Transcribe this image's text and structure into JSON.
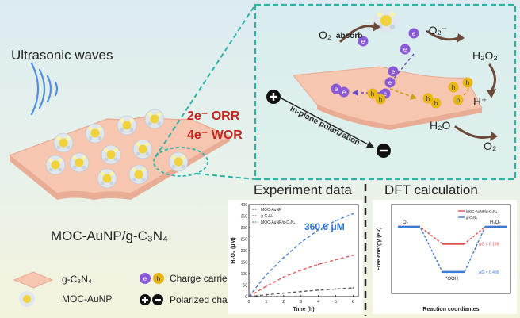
{
  "ultrasonic": "Ultrasonic waves",
  "reactions": {
    "orr": "2e⁻ ORR",
    "wor": "4e⁻ WOR"
  },
  "composite_label": "MOC-AuNP/g-C₃N₄",
  "inset": {
    "polarization": "In-plane polarization",
    "o2_left": "O₂",
    "absorb": "absorb",
    "superoxide": "·O₂⁻",
    "h2o2": "H₂O₂",
    "h_plus": "H⁺",
    "h2o": "H₂O",
    "o2_right": "O₂",
    "electron": "e",
    "hole": "h"
  },
  "legend": {
    "gcn": "g-C₃N₄",
    "moc": "MOC-AuNP",
    "carriers": "Charge carriers",
    "polarized": "Polarized charge"
  },
  "experiment": {
    "heading": "Experiment data",
    "annotation": "360.6 μM",
    "chart_data": {
      "type": "line",
      "xlabel": "Time (h)",
      "ylabel": "H₂O₂ (μM)",
      "xlim": [
        0,
        6.3
      ],
      "ylim": [
        0,
        400
      ],
      "xticks": [
        0,
        1,
        2,
        3,
        4,
        5,
        6
      ],
      "yticks": [
        0,
        50,
        100,
        150,
        200,
        250,
        300,
        350,
        400
      ],
      "legend_position": "top-left",
      "series": [
        {
          "name": "MOC-AuNP",
          "color": "#555555",
          "x": [
            0,
            1,
            2,
            3,
            4,
            5,
            6
          ],
          "y": [
            0,
            8,
            15,
            22,
            28,
            33,
            38
          ]
        },
        {
          "name": "g-C₃N₄",
          "color": "#e05050",
          "x": [
            0,
            1,
            2,
            3,
            4,
            5,
            6
          ],
          "y": [
            0,
            45,
            85,
            115,
            140,
            160,
            180
          ]
        },
        {
          "name": "MOC-AuNP/g-C₃N₄",
          "color": "#3a7bd5",
          "x": [
            0,
            1,
            2,
            3,
            4,
            5,
            6
          ],
          "y": [
            0,
            95,
            170,
            235,
            290,
            330,
            360.6
          ]
        }
      ]
    }
  },
  "dft": {
    "heading": "DFT calculation",
    "chart_data": {
      "type": "line",
      "xlabel": "Reaction coordiantes",
      "ylabel": "Free energy (eV)",
      "xticks": [],
      "yticks": [],
      "legend_position": "top-right",
      "series": [
        {
          "name": "MOC-AuNP/g-C₃N₄",
          "color": "#e05050",
          "y": [
            0,
            0.189,
            0
          ]
        },
        {
          "name": "g-C₃N₄",
          "color": "#3a7bd5",
          "y": [
            0,
            0.499,
            0
          ]
        }
      ],
      "levels": [
        "O₂",
        "*OOH",
        "H₂O₂"
      ],
      "annotations": [
        "ΔG = 0.189",
        "ΔG = 0.499"
      ]
    }
  }
}
